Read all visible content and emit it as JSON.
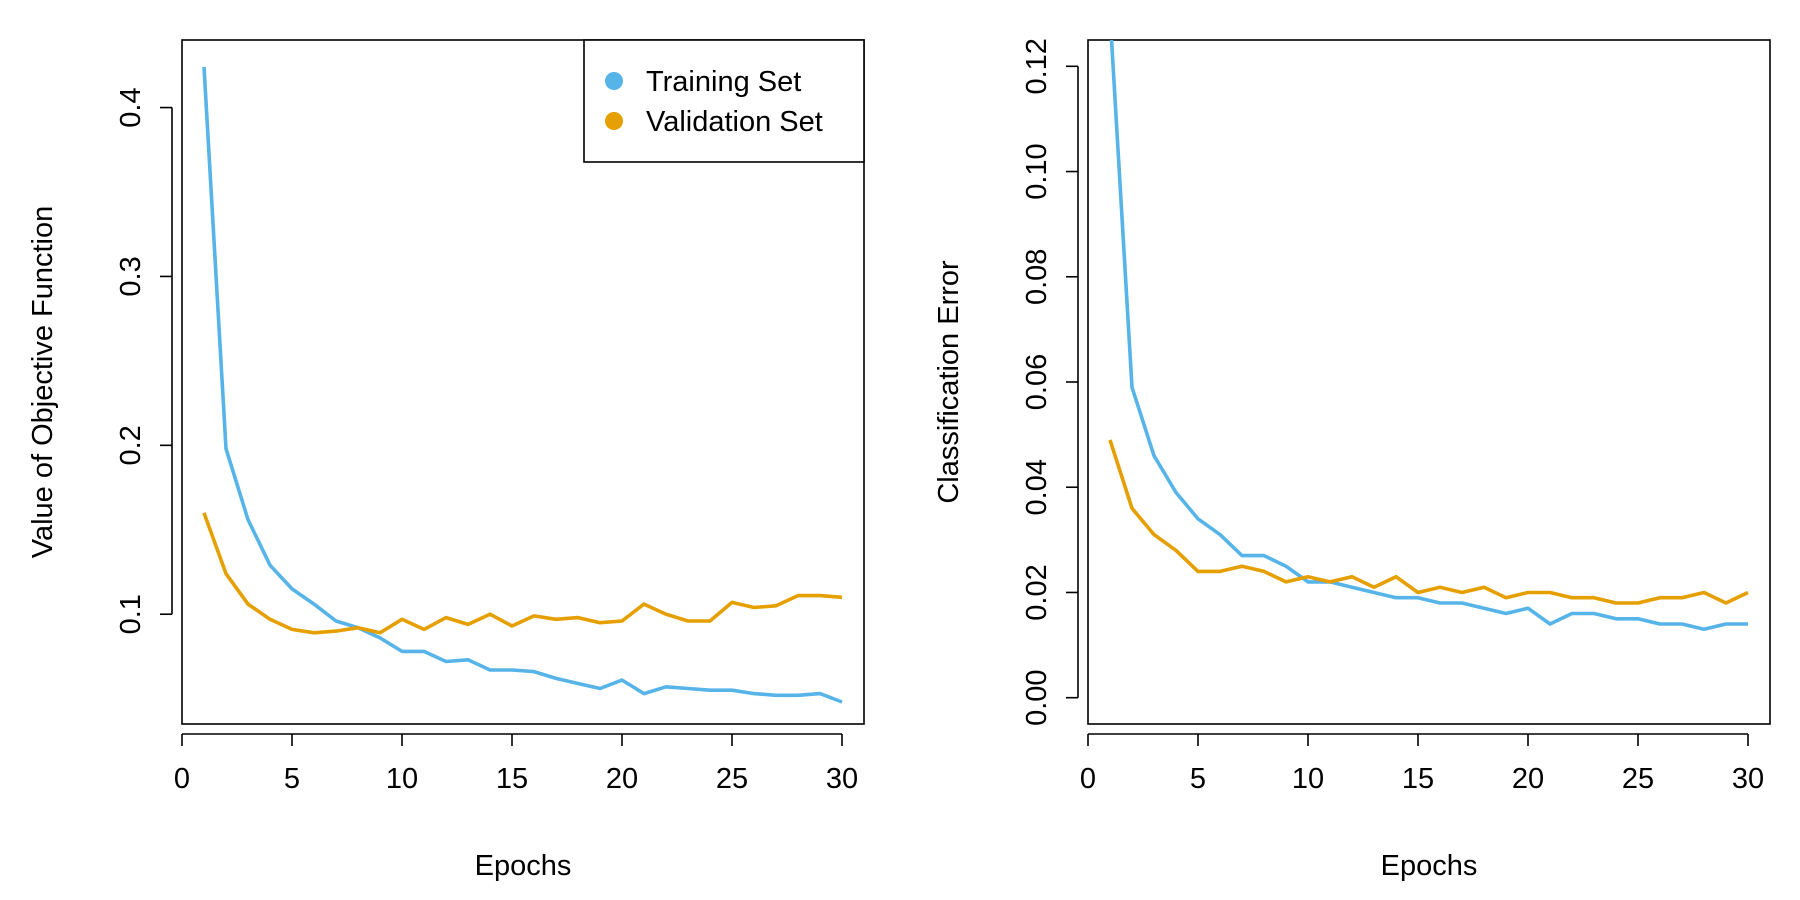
{
  "chart_data": [
    {
      "type": "line",
      "xlabel": "Epochs",
      "ylabel": "Value of Objective Function",
      "xlim": [
        0,
        31
      ],
      "ylim": [
        0.035,
        0.44
      ],
      "xticks": [
        0,
        5,
        10,
        15,
        20,
        25,
        30
      ],
      "yticks": [
        0.1,
        0.2,
        0.3,
        0.4
      ],
      "ytick_labels": [
        "0.1",
        "0.2",
        "0.3",
        "0.4"
      ],
      "legend": "top-right",
      "x": [
        1,
        2,
        3,
        4,
        5,
        6,
        7,
        8,
        9,
        10,
        11,
        12,
        13,
        14,
        15,
        16,
        17,
        18,
        19,
        20,
        21,
        22,
        23,
        24,
        25,
        26,
        27,
        28,
        29,
        30
      ],
      "series": [
        {
          "name": "Training Set",
          "color": "#56B4E9",
          "values": [
            0.424,
            0.198,
            0.156,
            0.129,
            0.115,
            0.106,
            0.096,
            0.092,
            0.086,
            0.078,
            0.078,
            0.072,
            0.073,
            0.067,
            0.067,
            0.066,
            0.062,
            0.059,
            0.056,
            0.061,
            0.053,
            0.057,
            0.056,
            0.055,
            0.055,
            0.053,
            0.052,
            0.052,
            0.053,
            0.048
          ]
        },
        {
          "name": "Validation Set",
          "color": "#E69F00",
          "values": [
            0.16,
            0.124,
            0.106,
            0.097,
            0.091,
            0.089,
            0.09,
            0.092,
            0.089,
            0.097,
            0.091,
            0.098,
            0.094,
            0.1,
            0.093,
            0.099,
            0.097,
            0.098,
            0.095,
            0.096,
            0.106,
            0.1,
            0.096,
            0.096,
            0.107,
            0.104,
            0.105,
            0.111,
            0.111,
            0.11
          ]
        }
      ]
    },
    {
      "type": "line",
      "xlabel": "Epochs",
      "ylabel": "Classification Error",
      "xlim": [
        0,
        31
      ],
      "ylim": [
        -0.005,
        0.125
      ],
      "xticks": [
        0,
        5,
        10,
        15,
        20,
        25,
        30
      ],
      "yticks": [
        0.0,
        0.02,
        0.04,
        0.06,
        0.08,
        0.1,
        0.12
      ],
      "ytick_labels": [
        "0.00",
        "0.02",
        "0.04",
        "0.06",
        "0.08",
        "0.10",
        "0.12"
      ],
      "x": [
        1,
        2,
        3,
        4,
        5,
        6,
        7,
        8,
        9,
        10,
        11,
        12,
        13,
        14,
        15,
        16,
        17,
        18,
        19,
        20,
        21,
        22,
        23,
        24,
        25,
        26,
        27,
        28,
        29,
        30
      ],
      "series": [
        {
          "color": "#56B4E9",
          "values": [
            0.13,
            0.059,
            0.046,
            0.039,
            0.034,
            0.031,
            0.027,
            0.027,
            0.025,
            0.022,
            0.022,
            0.021,
            0.02,
            0.019,
            0.019,
            0.018,
            0.018,
            0.017,
            0.016,
            0.017,
            0.014,
            0.016,
            0.016,
            0.015,
            0.015,
            0.014,
            0.014,
            0.013,
            0.014,
            0.014
          ]
        },
        {
          "color": "#E69F00",
          "values": [
            0.049,
            0.036,
            0.031,
            0.028,
            0.024,
            0.024,
            0.025,
            0.024,
            0.022,
            0.023,
            0.022,
            0.023,
            0.021,
            0.023,
            0.02,
            0.021,
            0.02,
            0.021,
            0.019,
            0.02,
            0.02,
            0.019,
            0.019,
            0.018,
            0.018,
            0.019,
            0.019,
            0.02,
            0.018,
            0.02
          ]
        }
      ]
    }
  ]
}
